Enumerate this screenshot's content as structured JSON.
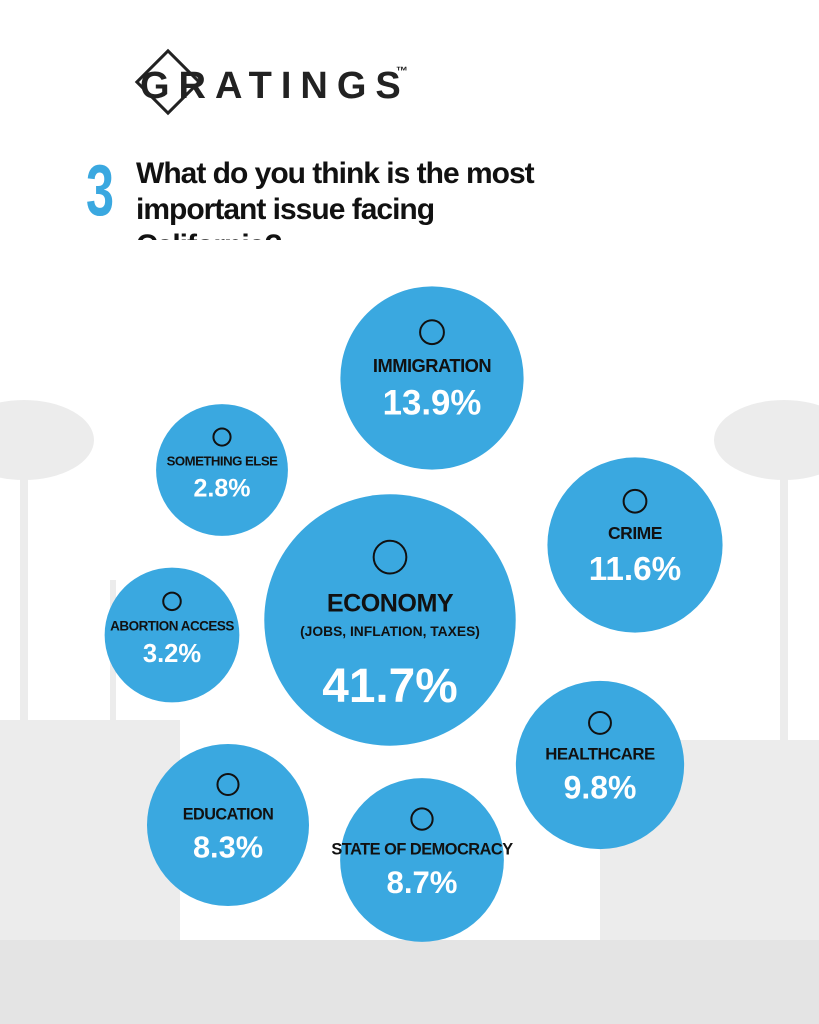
{
  "logo": "GRATINGS",
  "logo_mark": "™",
  "chart_data": {
    "type": "bubble",
    "number": "3",
    "title": "What do you think is the most important issue facing California?",
    "categories": [
      "IMMIGRATION",
      "SOMETHING ELSE",
      "CRIME",
      "ECONOMY",
      "ABORTION ACCESS",
      "HEALTHCARE",
      "EDUCATION",
      "STATE OF DEMOCRACY"
    ],
    "category_details": [
      null,
      null,
      null,
      "(JOBS, INFLATION, TAXES)",
      null,
      null,
      null,
      null
    ],
    "values": [
      13.9,
      2.8,
      11.6,
      41.7,
      3.2,
      9.8,
      8.3,
      8.7
    ],
    "value_labels": [
      "13.9%",
      "2.8%",
      "11.6%",
      "41.7%",
      "3.2%",
      "9.8%",
      "8.3%",
      "8.7%"
    ],
    "color": "#3aa8e0"
  }
}
